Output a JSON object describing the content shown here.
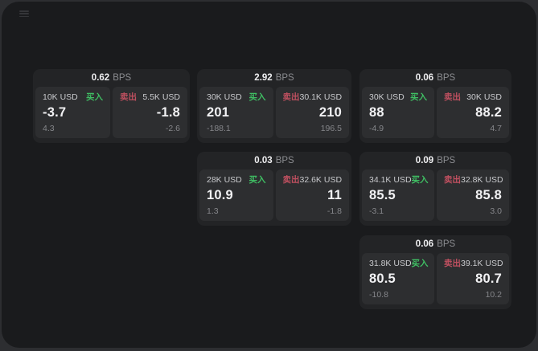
{
  "page": {
    "bps_unit": "BPS",
    "buy_label": "买入",
    "sell_label": "卖出"
  },
  "colors": {
    "buy_green": "#3fbe63",
    "sell_red": "#c05060",
    "window_bg": "#1a1b1d",
    "card_bg": "#232426",
    "panel_bg": "#2d2e30"
  },
  "cards": [
    {
      "bps": "0.62",
      "buy": {
        "amount": "10K USD",
        "price": "-3.7",
        "delta": "4.3"
      },
      "sell": {
        "amount": "5.5K USD",
        "price": "-1.8",
        "delta": "-2.6"
      }
    },
    {
      "bps": "2.92",
      "buy": {
        "amount": "30K USD",
        "price": "201",
        "delta": "-188.1"
      },
      "sell": {
        "amount": "30.1K USD",
        "price": "210",
        "delta": "196.5"
      }
    },
    {
      "bps": "0.06",
      "buy": {
        "amount": "30K USD",
        "price": "88",
        "delta": "-4.9"
      },
      "sell": {
        "amount": "30K USD",
        "price": "88.2",
        "delta": "4.7"
      }
    },
    {
      "bps": "0.03",
      "buy": {
        "amount": "28K USD",
        "price": "10.9",
        "delta": "1.3"
      },
      "sell": {
        "amount": "32.6K USD",
        "price": "11",
        "delta": "-1.8"
      }
    },
    {
      "bps": "0.09",
      "buy": {
        "amount": "34.1K USD",
        "price": "85.5",
        "delta": "-3.1"
      },
      "sell": {
        "amount": "32.8K USD",
        "price": "85.8",
        "delta": "3.0"
      }
    },
    {
      "bps": "0.06",
      "buy": {
        "amount": "31.8K USD",
        "price": "80.5",
        "delta": "-10.8"
      },
      "sell": {
        "amount": "39.1K USD",
        "price": "80.7",
        "delta": "10.2"
      }
    }
  ]
}
